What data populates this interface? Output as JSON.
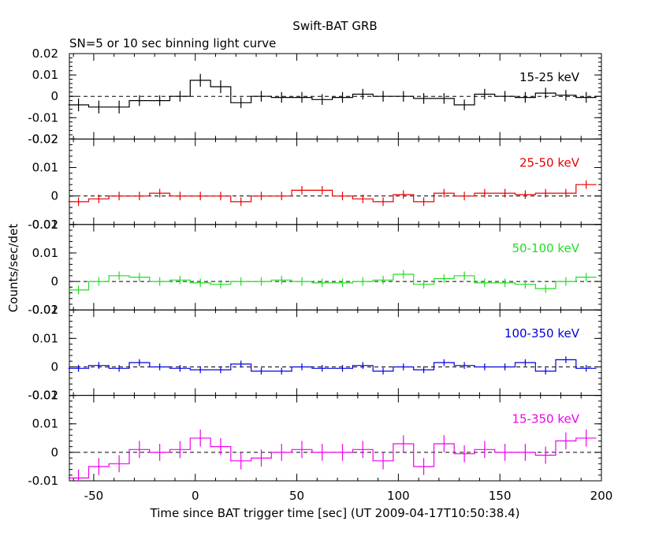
{
  "title": "Swift-BAT GRB",
  "subtitle": "SN=5 or 10 sec binning light curve",
  "xlabel": "Time since BAT trigger time [sec] (UT 2009-04-17T10:50:38.4)",
  "ylabel": "Counts/sec/det",
  "chart_data": {
    "type": "line",
    "step": true,
    "xlim": [
      -62,
      200
    ],
    "x_ticks": [
      -50,
      0,
      50,
      100,
      150,
      200
    ],
    "x": [
      -57.5,
      -47.5,
      -37.5,
      -27.5,
      -17.5,
      -7.5,
      2.5,
      12.5,
      22.5,
      32.5,
      42.5,
      52.5,
      62.5,
      72.5,
      82.5,
      92.5,
      102.5,
      112.5,
      122.5,
      132.5,
      142.5,
      152.5,
      162.5,
      172.5,
      182.5,
      192.5
    ],
    "panels": [
      {
        "name": "15-25 keV",
        "color": "#000000",
        "ylim": [
          -0.02,
          0.02
        ],
        "y_ticks": [
          -0.02,
          -0.01,
          0,
          0.01,
          0.02
        ],
        "y_tick_labels": [
          "-0.02",
          "-0.01",
          "0",
          "0.01",
          "0.02"
        ],
        "values": [
          -0.004,
          -0.005,
          -0.005,
          -0.002,
          -0.002,
          0.0,
          0.0075,
          0.0045,
          -0.003,
          0.0,
          -0.0005,
          -0.0005,
          -0.0015,
          -0.0005,
          0.001,
          0.0,
          0.0,
          -0.001,
          -0.001,
          -0.004,
          0.001,
          0.0,
          -0.0005,
          0.0015,
          0.0005,
          -0.0005
        ],
        "errors": [
          0.003,
          0.003,
          0.003,
          0.0025,
          0.0025,
          0.0025,
          0.003,
          0.003,
          0.0025,
          0.0025,
          0.0025,
          0.0025,
          0.0025,
          0.0025,
          0.0025,
          0.0025,
          0.0025,
          0.0025,
          0.0025,
          0.0025,
          0.0025,
          0.0025,
          0.0025,
          0.0025,
          0.0025,
          0.0025
        ]
      },
      {
        "name": "25-50 keV",
        "color": "#e80000",
        "ylim": [
          -0.01,
          0.02
        ],
        "y_ticks": [
          -0.01,
          0,
          0.01,
          0.02
        ],
        "y_tick_labels": [
          "-0.01",
          "0",
          "0.01",
          "0.02"
        ],
        "values": [
          -0.002,
          -0.001,
          0.0,
          0.0,
          0.001,
          0.0,
          0.0,
          0.0,
          -0.002,
          0.0,
          0.0,
          0.002,
          0.002,
          0.0,
          -0.001,
          -0.002,
          0.0005,
          -0.002,
          0.001,
          0.0,
          0.001,
          0.001,
          0.0005,
          0.001,
          0.001,
          0.004
        ],
        "errors": [
          0.0015,
          0.0015,
          0.0015,
          0.0015,
          0.0015,
          0.0015,
          0.0015,
          0.0015,
          0.0015,
          0.0015,
          0.0015,
          0.0015,
          0.0015,
          0.0015,
          0.0015,
          0.0015,
          0.0015,
          0.0015,
          0.0015,
          0.0015,
          0.0015,
          0.0015,
          0.0015,
          0.0015,
          0.0015,
          0.0015
        ]
      },
      {
        "name": "50-100 keV",
        "color": "#22dd22",
        "ylim": [
          -0.01,
          0.02
        ],
        "y_ticks": [
          -0.01,
          0,
          0.01,
          0.02
        ],
        "y_tick_labels": [
          "-0.01",
          "0",
          "0.01",
          "0.02"
        ],
        "values": [
          -0.003,
          0.0,
          0.002,
          0.0015,
          0.0,
          0.0005,
          -0.0005,
          -0.001,
          0.0,
          0.0,
          0.0005,
          0.0,
          -0.0005,
          -0.0005,
          0.0,
          0.0005,
          0.0025,
          -0.001,
          0.001,
          0.002,
          -0.0005,
          -0.0005,
          -0.001,
          -0.0025,
          0.0,
          0.0015
        ],
        "errors": [
          0.0015,
          0.0015,
          0.0015,
          0.0015,
          0.0015,
          0.0015,
          0.0015,
          0.0015,
          0.0015,
          0.0015,
          0.0015,
          0.0015,
          0.0015,
          0.0015,
          0.0015,
          0.0015,
          0.0015,
          0.0015,
          0.0015,
          0.0015,
          0.0015,
          0.0015,
          0.0015,
          0.0015,
          0.0015,
          0.0015
        ]
      },
      {
        "name": "100-350 keV",
        "color": "#0000e0",
        "ylim": [
          -0.01,
          0.02
        ],
        "y_ticks": [
          -0.01,
          0,
          0.01,
          0.02
        ],
        "y_tick_labels": [
          "-0.01",
          "0",
          "0.01",
          "0.02"
        ],
        "values": [
          -0.0005,
          0.0005,
          -0.0005,
          0.0015,
          0.0,
          -0.0005,
          -0.001,
          -0.001,
          0.001,
          -0.0015,
          -0.0015,
          0.0,
          -0.0005,
          -0.0005,
          0.0005,
          -0.0015,
          0.0,
          -0.001,
          0.0015,
          0.0005,
          0.0,
          0.0,
          0.0015,
          -0.0015,
          0.0025,
          -0.0005
        ],
        "errors": [
          0.0012,
          0.0012,
          0.0012,
          0.0012,
          0.0012,
          0.0012,
          0.0012,
          0.0012,
          0.0012,
          0.0012,
          0.0012,
          0.0012,
          0.0012,
          0.0012,
          0.0012,
          0.0012,
          0.0012,
          0.0012,
          0.0012,
          0.0012,
          0.0012,
          0.0012,
          0.0012,
          0.0012,
          0.0012,
          0.0012
        ]
      },
      {
        "name": "15-350 keV",
        "color": "#f000f0",
        "ylim": [
          -0.01,
          0.02
        ],
        "y_ticks": [
          -0.01,
          0,
          0.01,
          0.02
        ],
        "y_tick_labels": [
          "-0.01",
          "0",
          "0.01",
          "0.02"
        ],
        "values": [
          -0.009,
          -0.005,
          -0.004,
          0.001,
          0.0,
          0.001,
          0.005,
          0.002,
          -0.003,
          -0.002,
          0.0,
          0.001,
          0.0,
          0.0,
          0.001,
          -0.003,
          0.003,
          -0.005,
          0.003,
          -0.0005,
          0.001,
          0.0,
          0.0,
          -0.001,
          0.004,
          0.005
        ],
        "errors": [
          0.003,
          0.003,
          0.003,
          0.003,
          0.003,
          0.003,
          0.003,
          0.003,
          0.003,
          0.003,
          0.003,
          0.003,
          0.003,
          0.003,
          0.003,
          0.003,
          0.003,
          0.003,
          0.003,
          0.003,
          0.003,
          0.003,
          0.003,
          0.003,
          0.003,
          0.003
        ]
      }
    ]
  }
}
